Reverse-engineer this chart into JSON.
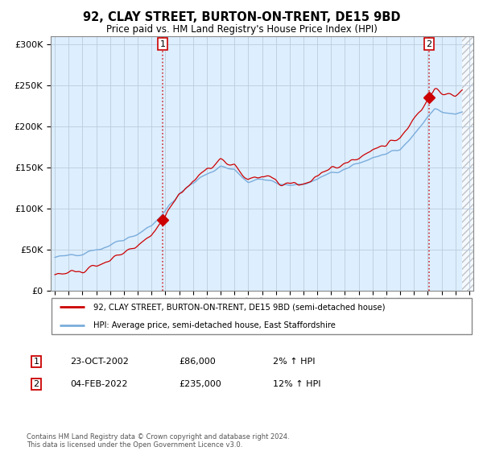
{
  "title": "92, CLAY STREET, BURTON-ON-TRENT, DE15 9BD",
  "subtitle": "Price paid vs. HM Land Registry's House Price Index (HPI)",
  "legend_line1": "92, CLAY STREET, BURTON-ON-TRENT, DE15 9BD (semi-detached house)",
  "legend_line2": "HPI: Average price, semi-detached house, East Staffordshire",
  "sale1_date": "23-OCT-2002",
  "sale1_price": "£86,000",
  "sale1_hpi": "2% ↑ HPI",
  "sale2_date": "04-FEB-2022",
  "sale2_price": "£235,000",
  "sale2_hpi": "12% ↑ HPI",
  "footer": "Contains HM Land Registry data © Crown copyright and database right 2024.\nThis data is licensed under the Open Government Licence v3.0.",
  "line_color_red": "#cc0000",
  "line_color_blue": "#7aaddb",
  "plot_bg_color": "#ddeeff",
  "grid_color": "#bbccdd",
  "ylim": [
    0,
    310000
  ],
  "yticks": [
    0,
    50000,
    100000,
    150000,
    200000,
    250000,
    300000
  ],
  "sale1_year": 2002.81,
  "sale1_value": 86000,
  "sale2_year": 2022.09,
  "sale2_value": 235000,
  "xmin": 1994.7,
  "xmax": 2025.3,
  "hatch_start": 2024.5
}
